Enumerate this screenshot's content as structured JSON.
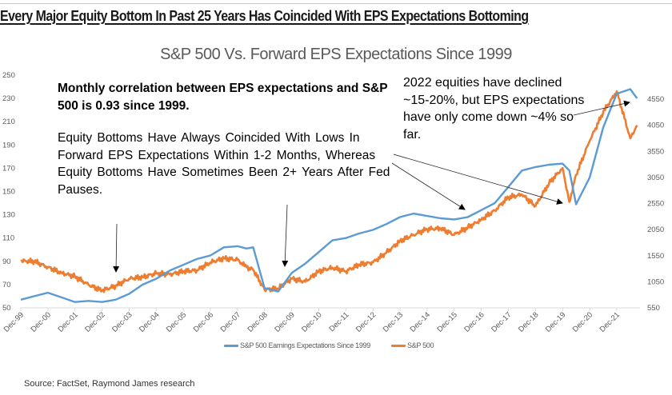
{
  "headline": "Every Major Equity Bottom In Past 25 Years Has Coincided With EPS Expectations Bottoming",
  "annotations": {
    "correlation": [
      "Monthly correlation between EPS expectations and S&P",
      "500 is 0.93 since 1999."
    ],
    "bottoms": [
      "Equity Bottoms Have Always Coincided With Lows In",
      "Forward EPS Expectations Within 1-2 Months, Whereas",
      "Equity Bottoms Have Sometimes Been 2+ Years After Fed",
      "Pauses."
    ],
    "decline_2022": [
      "2022 equities have declined",
      "~15-20%, but EPS expectations",
      "have only come down ~4% so",
      "far."
    ]
  },
  "source": "Source:  FactSet, Raymond James research",
  "chart_data": {
    "type": "line",
    "title": "S&P 500 Vs. Forward EPS Expectations Since 1999",
    "xlabel": "",
    "ylabel_left": "",
    "ylabel_right": "",
    "x_tick_labels": [
      "Dec-99",
      "Dec-00",
      "Dec-01",
      "Dec-02",
      "Dec-03",
      "Dec-04",
      "Dec-05",
      "Dec-06",
      "Dec-07",
      "Dec-08",
      "Dec-09",
      "Dec-10",
      "Dec-11",
      "Dec-12",
      "Dec-13",
      "Dec-14",
      "Dec-15",
      "Dec-16",
      "Dec-17",
      "Dec-18",
      "Dec-19",
      "Dec-20",
      "Dec-21"
    ],
    "y_left": {
      "ticks": [
        50,
        70,
        90,
        110,
        130,
        150,
        170,
        190,
        210,
        230,
        250
      ],
      "range": [
        50,
        250
      ]
    },
    "y_right": {
      "ticks": [
        550,
        1050,
        1550,
        2050,
        2550,
        3050,
        3550,
        4050,
        4550
      ],
      "range": [
        550,
        4550
      ]
    },
    "grid": false,
    "legend_position": "bottom",
    "x_years": [
      1999.92,
      2000.42,
      2000.92,
      2001.42,
      2001.92,
      2002.42,
      2002.92,
      2003.42,
      2003.92,
      2004.42,
      2004.92,
      2005.42,
      2005.92,
      2006.42,
      2006.92,
      2007.42,
      2007.92,
      2008.25,
      2008.5,
      2008.92,
      2009.42,
      2009.92,
      2010.42,
      2010.92,
      2011.42,
      2011.92,
      2012.42,
      2012.92,
      2013.42,
      2013.92,
      2014.42,
      2014.92,
      2015.42,
      2015.92,
      2016.42,
      2016.92,
      2017.42,
      2017.92,
      2018.42,
      2018.92,
      2019.42,
      2019.92,
      2020.17,
      2020.42,
      2020.92,
      2021.42,
      2021.92,
      2022.42,
      2022.67
    ],
    "series": [
      {
        "name": "S&P 500 Earnings Expectations Since 1999",
        "color": "#5b9bd5",
        "axis": "left",
        "values": [
          57,
          60,
          63,
          59,
          55,
          56,
          55,
          57,
          62,
          70,
          75,
          82,
          87,
          92,
          95,
          102,
          103,
          101,
          102,
          67,
          64,
          80,
          88,
          98,
          108,
          110,
          114,
          117,
          122,
          128,
          131,
          129,
          127,
          126,
          128,
          134,
          140,
          154,
          168,
          171,
          173,
          174,
          168,
          139,
          162,
          205,
          234,
          238,
          230
        ]
      },
      {
        "name": "S&P 500",
        "color": "#ed7d31",
        "axis": "right",
        "values": [
          1450,
          1440,
          1330,
          1220,
          1150,
          990,
          880,
          970,
          1110,
          1140,
          1210,
          1190,
          1250,
          1270,
          1420,
          1500,
          1470,
          1330,
          1280,
          900,
          920,
          1110,
          1050,
          1250,
          1320,
          1250,
          1380,
          1420,
          1610,
          1830,
          1950,
          2060,
          2070,
          1950,
          2090,
          2240,
          2420,
          2670,
          2720,
          2500,
          2940,
          3230,
          2580,
          3100,
          3750,
          4300,
          4700,
          3800,
          4050
        ]
      }
    ],
    "annotations": [
      {
        "text_ref": "decline_2022",
        "arrow_to": "Mid-2022"
      },
      {
        "text_ref": "bottoms",
        "arrow_to": [
          "2016 bottom",
          "2020 bottom"
        ]
      },
      {
        "arrow_to": [
          "2003 bottom",
          "2009 bottom"
        ]
      }
    ]
  }
}
